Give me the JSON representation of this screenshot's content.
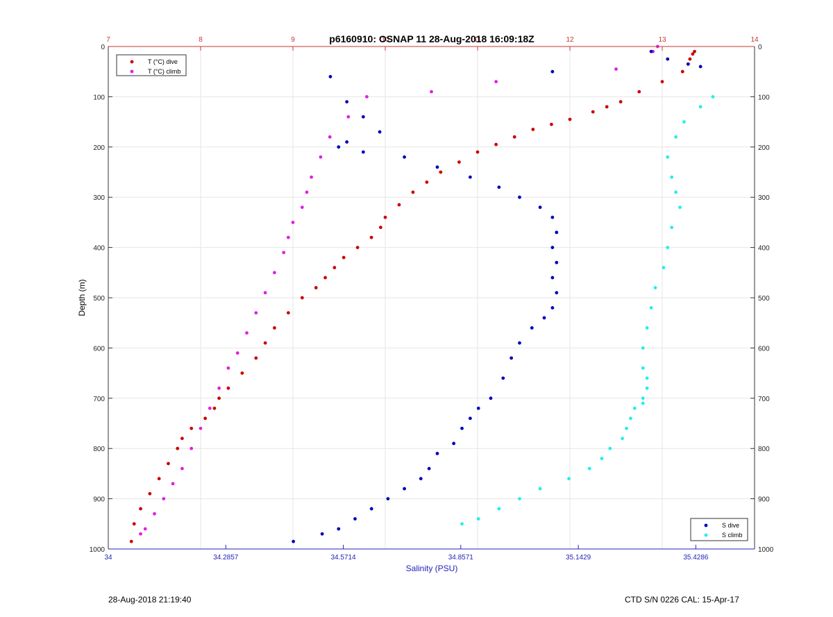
{
  "chart_data": {
    "type": "scatter",
    "title": "p6160910: OSNAP 11 28-Aug-2018 16:09:18Z",
    "ylabel": "Depth (m)",
    "xlabel_bottom": "Salinity (PSU)",
    "xlabel_top": "",
    "y_reversed": true,
    "ylim": [
      0,
      1000
    ],
    "y_ticks": [
      "0",
      "100",
      "200",
      "300",
      "400",
      "500",
      "600",
      "700",
      "800",
      "900",
      "1000"
    ],
    "x_top_lim": [
      7,
      14
    ],
    "x_top_ticks": [
      "7",
      "8",
      "9",
      "10",
      "11",
      "12",
      "13",
      "14"
    ],
    "x_bottom_lim": [
      34,
      35.5714
    ],
    "x_bottom_ticks": [
      "34",
      "34.2857",
      "34.5714",
      "34.8571",
      "35.1429",
      "35.4286"
    ],
    "grid": true,
    "colors": {
      "top_axis": "#cc3333",
      "bottom_axis": "#2222bb",
      "grid": "#e6e6e6"
    },
    "legend_top_left": [
      {
        "name": "T (°C) dive",
        "color": "#cc0000"
      },
      {
        "name": "T (°C) climb",
        "color": "#e020e0"
      }
    ],
    "legend_bottom_right": [
      {
        "name": "S dive",
        "color": "#0000bb"
      },
      {
        "name": "S climb",
        "color": "#22eeee"
      }
    ],
    "series": [
      {
        "name": "T (°C) dive",
        "axis": "top",
        "color": "#cc0000",
        "x": [
          13.35,
          13.33,
          13.3,
          13.28,
          13.22,
          13.0,
          12.75,
          12.55,
          12.4,
          12.25,
          12.0,
          11.8,
          11.6,
          11.4,
          11.2,
          11.0,
          10.8,
          10.6,
          10.45,
          10.3,
          10.15,
          10.0,
          9.95,
          9.85,
          9.7,
          9.55,
          9.45,
          9.35,
          9.25,
          9.1,
          8.95,
          8.8,
          8.7,
          8.6,
          8.45,
          8.3,
          8.2,
          8.15,
          8.05,
          7.9,
          7.8,
          7.75,
          7.65,
          7.55,
          7.45,
          7.35,
          7.28,
          7.25
        ],
        "y": [
          10,
          15,
          25,
          35,
          50,
          70,
          90,
          110,
          120,
          130,
          145,
          155,
          165,
          180,
          195,
          210,
          230,
          250,
          270,
          290,
          315,
          340,
          360,
          380,
          400,
          420,
          440,
          460,
          480,
          500,
          530,
          560,
          590,
          620,
          650,
          680,
          700,
          720,
          740,
          760,
          780,
          800,
          830,
          860,
          890,
          920,
          950,
          985
        ]
      },
      {
        "name": "T (°C) climb",
        "axis": "top",
        "color": "#e020e0",
        "x": [
          12.95,
          12.9,
          12.5,
          11.2,
          10.5,
          9.8,
          9.6,
          9.4,
          9.3,
          9.2,
          9.15,
          9.1,
          9.0,
          8.95,
          8.9,
          8.8,
          8.7,
          8.6,
          8.5,
          8.4,
          8.3,
          8.2,
          8.1,
          8.0,
          7.9,
          7.8,
          7.7,
          7.6,
          7.5,
          7.4,
          7.35
        ],
        "y": [
          0,
          10,
          45,
          70,
          90,
          100,
          140,
          180,
          220,
          260,
          290,
          320,
          350,
          380,
          410,
          450,
          490,
          530,
          570,
          610,
          640,
          680,
          720,
          760,
          800,
          840,
          870,
          900,
          930,
          960,
          970
        ]
      },
      {
        "name": "S dive",
        "axis": "bottom",
        "color": "#0000bb",
        "x": [
          35.44,
          35.41,
          35.36,
          35.32,
          35.08,
          34.54,
          34.58,
          34.62,
          34.66,
          34.58,
          34.56,
          34.62,
          34.72,
          34.8,
          34.88,
          34.95,
          35.0,
          35.05,
          35.08,
          35.09,
          35.08,
          35.09,
          35.08,
          35.09,
          35.08,
          35.06,
          35.03,
          35.0,
          34.98,
          34.96,
          34.93,
          34.9,
          34.88,
          34.86,
          34.84,
          34.8,
          34.78,
          34.76,
          34.72,
          34.68,
          34.64,
          34.6,
          34.56,
          34.52,
          34.45
        ],
        "y": [
          40,
          35,
          25,
          10,
          50,
          60,
          110,
          140,
          170,
          190,
          200,
          210,
          220,
          240,
          260,
          280,
          300,
          320,
          340,
          370,
          400,
          430,
          460,
          490,
          520,
          540,
          560,
          590,
          620,
          660,
          700,
          720,
          740,
          760,
          790,
          810,
          840,
          860,
          880,
          900,
          920,
          940,
          960,
          970,
          985
        ]
      },
      {
        "name": "S climb",
        "axis": "bottom",
        "color": "#22eeee",
        "x": [
          35.47,
          35.44,
          35.4,
          35.38,
          35.36,
          35.37,
          35.38,
          35.39,
          35.37,
          35.36,
          35.35,
          35.33,
          35.32,
          35.31,
          35.3,
          35.3,
          35.31,
          35.31,
          35.3,
          35.3,
          35.28,
          35.27,
          35.26,
          35.25,
          35.22,
          35.2,
          35.17,
          35.12,
          35.05,
          35.0,
          34.95,
          34.9,
          34.86
        ],
        "y": [
          100,
          120,
          150,
          180,
          220,
          260,
          290,
          320,
          360,
          400,
          440,
          480,
          520,
          560,
          600,
          640,
          660,
          680,
          700,
          710,
          720,
          740,
          760,
          780,
          800,
          820,
          840,
          860,
          880,
          900,
          920,
          940,
          950
        ]
      }
    ]
  },
  "footer": {
    "left": "28-Aug-2018 21:19:40",
    "right": "CTD S/N 0226  CAL: 15-Apr-17"
  }
}
